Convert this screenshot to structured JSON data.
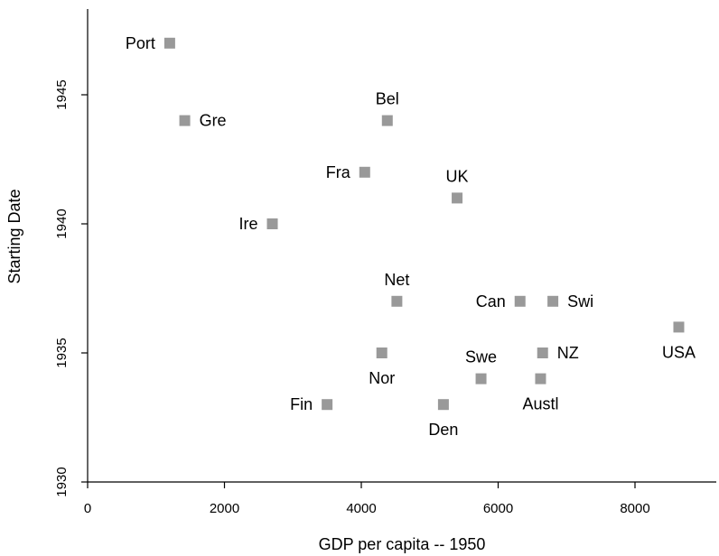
{
  "chart_data": {
    "type": "scatter",
    "xlabel": "GDP per capita -- 1950",
    "ylabel": "Starting Date",
    "xlim": [
      0,
      9200
    ],
    "ylim": [
      1930,
      1948.5
    ],
    "xticks": [
      0,
      2000,
      4000,
      6000,
      8000
    ],
    "yticks": [
      1930,
      1935,
      1940,
      1945
    ],
    "grid": false,
    "marker_color": "#999999",
    "points": [
      {
        "label": "Port",
        "x": 1200,
        "y": 1947,
        "label_pos": "left"
      },
      {
        "label": "Gre",
        "x": 1420,
        "y": 1944,
        "label_pos": "right"
      },
      {
        "label": "Bel",
        "x": 4380,
        "y": 1944,
        "label_pos": "above"
      },
      {
        "label": "Fra",
        "x": 4050,
        "y": 1942,
        "label_pos": "left"
      },
      {
        "label": "UK",
        "x": 5400,
        "y": 1941,
        "label_pos": "above"
      },
      {
        "label": "Ire",
        "x": 2700,
        "y": 1940,
        "label_pos": "left"
      },
      {
        "label": "Net",
        "x": 4520,
        "y": 1937,
        "label_pos": "above"
      },
      {
        "label": "Can",
        "x": 6320,
        "y": 1937,
        "label_pos": "left"
      },
      {
        "label": "Swi",
        "x": 6800,
        "y": 1937,
        "label_pos": "right"
      },
      {
        "label": "USA",
        "x": 8640,
        "y": 1936,
        "label_pos": "below"
      },
      {
        "label": "Nor",
        "x": 4300,
        "y": 1935,
        "label_pos": "below"
      },
      {
        "label": "NZ",
        "x": 6650,
        "y": 1935,
        "label_pos": "right"
      },
      {
        "label": "Swe",
        "x": 5750,
        "y": 1934,
        "label_pos": "above"
      },
      {
        "label": "Austl",
        "x": 6620,
        "y": 1934,
        "label_pos": "below"
      },
      {
        "label": "Fin",
        "x": 3500,
        "y": 1933,
        "label_pos": "left"
      },
      {
        "label": "Den",
        "x": 5200,
        "y": 1933,
        "label_pos": "below"
      }
    ]
  }
}
